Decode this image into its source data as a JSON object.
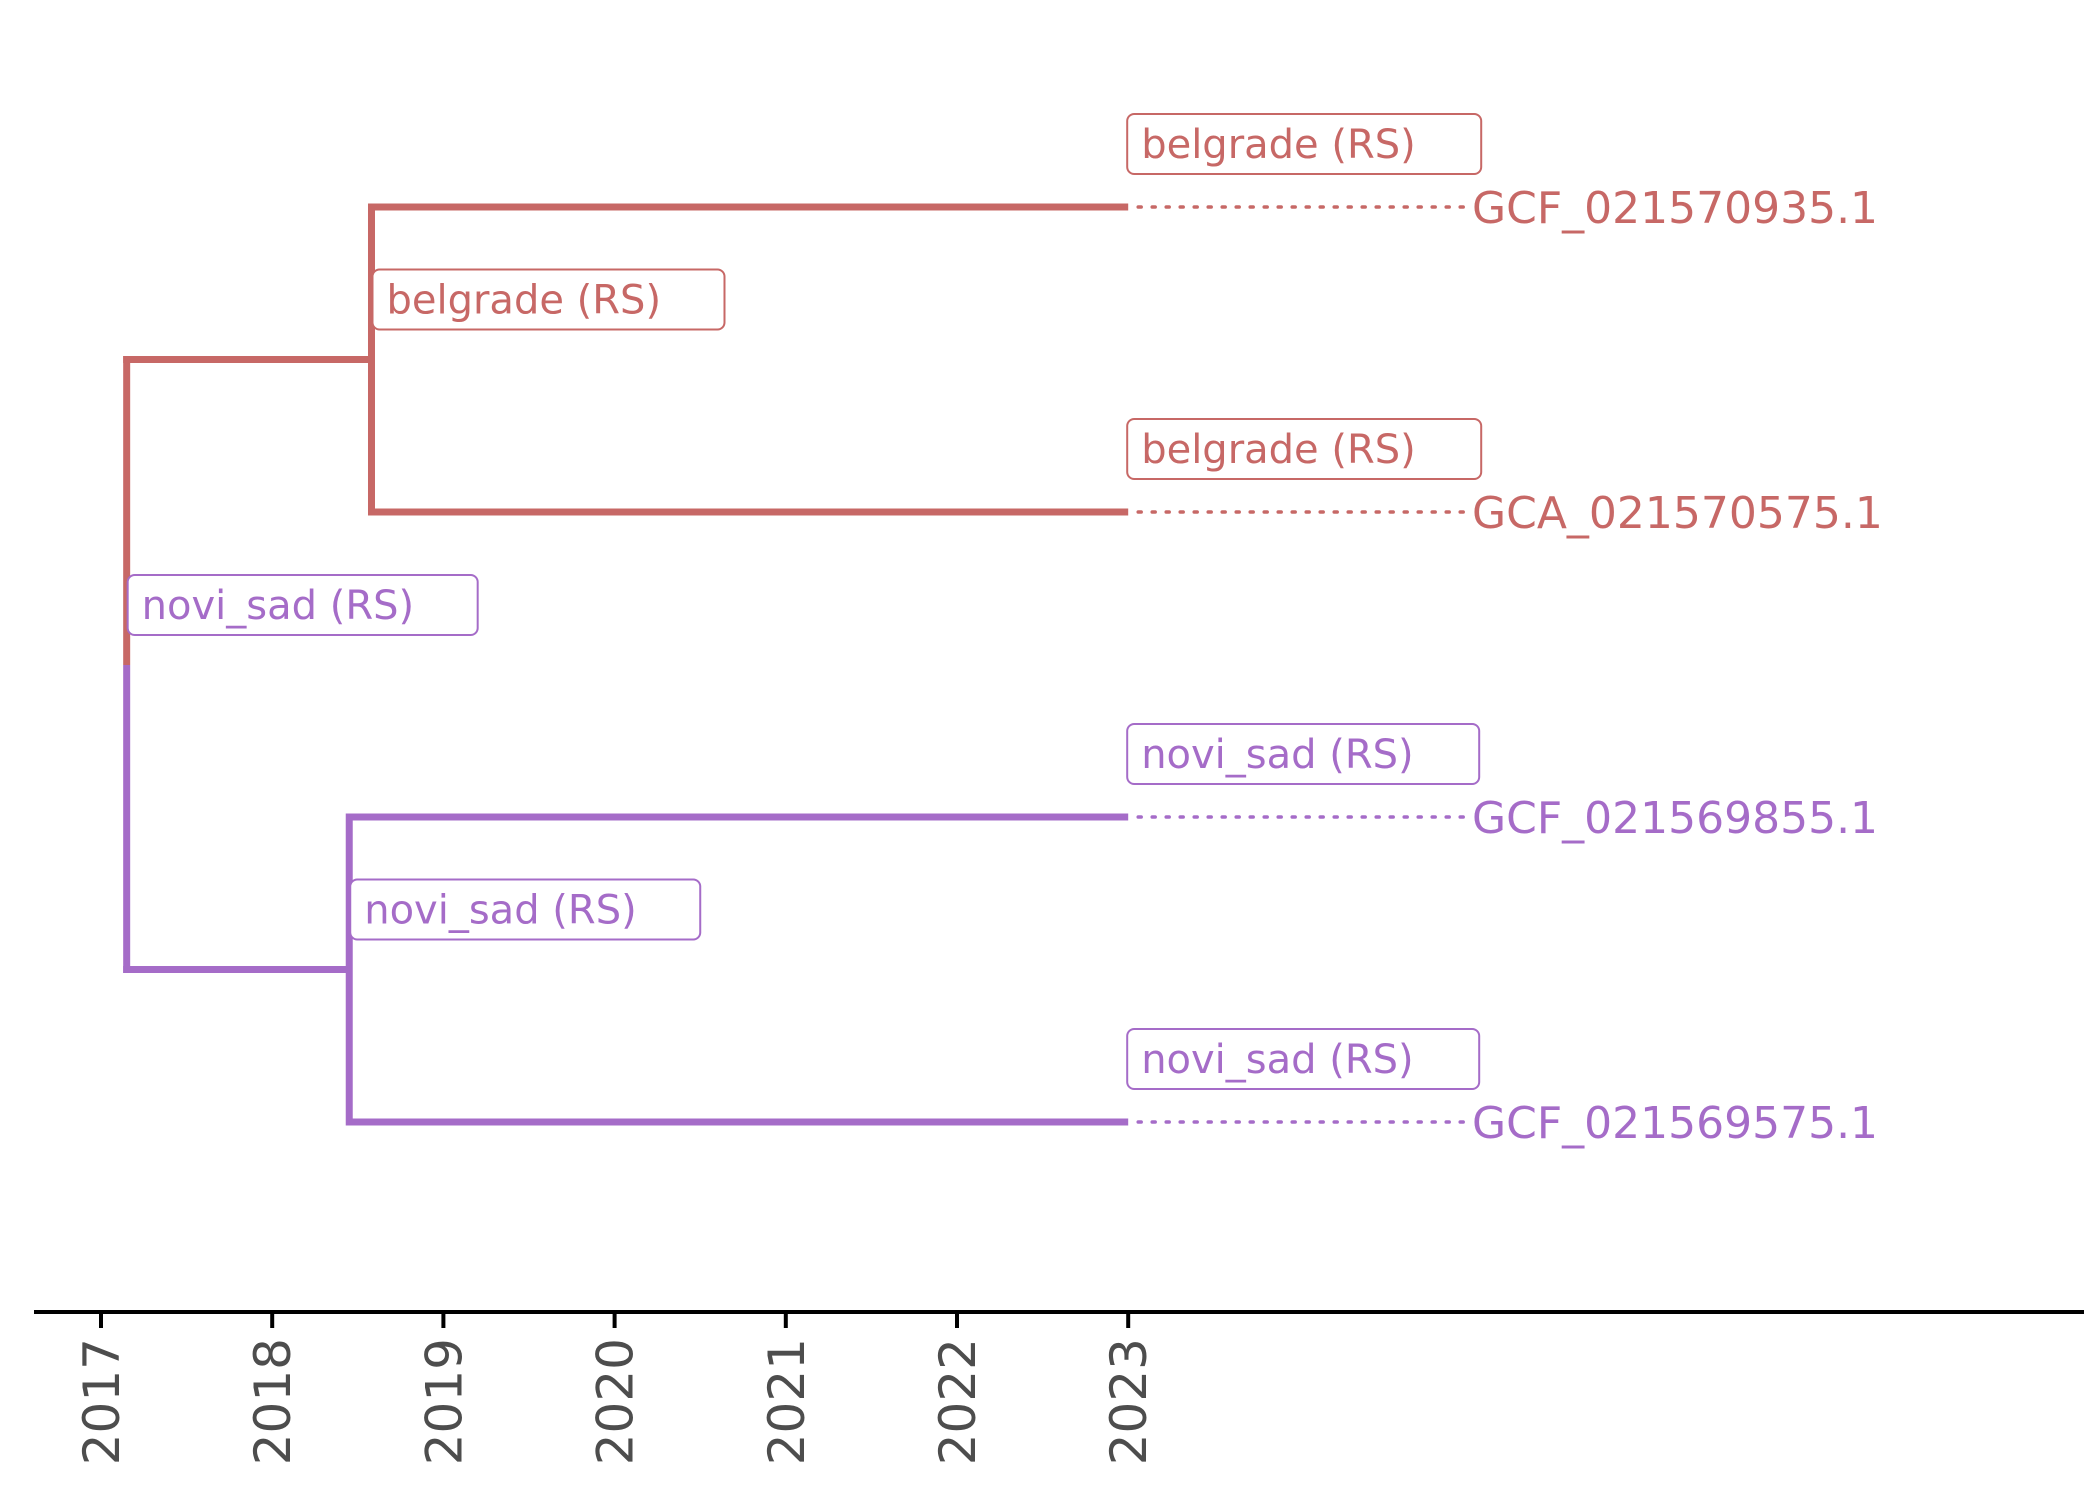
{
  "colors": {
    "belgrade": "#c76866",
    "novi_sad": "#a56cc8",
    "axis": "#000000",
    "tick_text": "#4d4d4d"
  },
  "tree": {
    "root": {
      "date": 2017.15,
      "label": "novi_sad (RS)",
      "clade": "novi_sad"
    },
    "internal": [
      {
        "id": "n_belgrade",
        "date": 2018.58,
        "label": "belgrade (RS)",
        "clade": "belgrade"
      },
      {
        "id": "n_novisad",
        "date": 2018.45,
        "label": "novi_sad (RS)",
        "clade": "novi_sad"
      }
    ],
    "tips": [
      {
        "name": "GCF_021570935.1",
        "date": 2023.0,
        "label": "belgrade (RS)",
        "clade": "belgrade"
      },
      {
        "name": "GCA_021570575.1",
        "date": 2023.0,
        "label": "belgrade (RS)",
        "clade": "belgrade"
      },
      {
        "name": "GCF_021569855.1",
        "date": 2023.0,
        "label": "novi_sad (RS)",
        "clade": "novi_sad"
      },
      {
        "name": "GCF_021569575.1",
        "date": 2023.0,
        "label": "novi_sad (RS)",
        "clade": "novi_sad"
      }
    ]
  },
  "axis": {
    "ticks": [
      "2017",
      "2018",
      "2019",
      "2020",
      "2021",
      "2022",
      "2023"
    ]
  }
}
